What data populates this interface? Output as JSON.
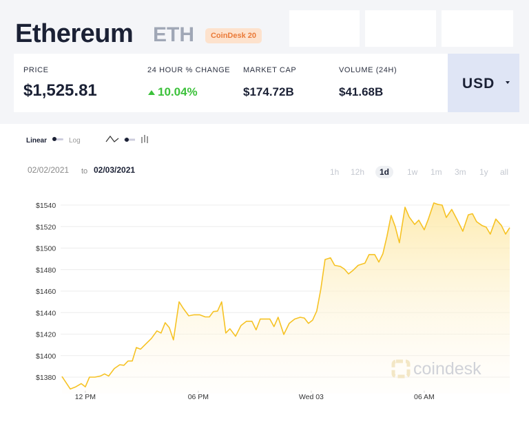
{
  "header": {
    "title": "Ethereum",
    "symbol": "ETH",
    "badge": "CoinDesk 20"
  },
  "stats": [
    {
      "label": "PRICE",
      "value": "$1,525.81"
    },
    {
      "label": "24 HOUR % CHANGE",
      "value": "10.04%"
    },
    {
      "label": "MARKET CAP",
      "value": "$174.72B"
    },
    {
      "label": "VOLUME (24H)",
      "value": "$41.68B"
    }
  ],
  "currency": "USD",
  "controls": {
    "scales": [
      "Linear",
      "Log"
    ],
    "date_from": "02/02/2021",
    "date_sep": "to",
    "date_to": "02/03/2021",
    "ranges": [
      "1h",
      "12h",
      "1d",
      "1w",
      "1m",
      "3m",
      "1y",
      "all"
    ],
    "active_range": "1d"
  },
  "watermark": "coindesk",
  "chart_data": {
    "type": "line",
    "color": "#f6c223",
    "x": [
      10.76,
      11.2,
      11.49,
      11.78,
      12.0,
      12.22,
      12.51,
      12.8,
      13.02,
      13.24,
      13.54,
      13.83,
      14.05,
      14.27,
      14.49,
      14.71,
      14.93,
      15.22,
      15.51,
      15.8,
      16.02,
      16.24,
      16.46,
      16.68,
      16.98,
      17.2,
      17.49,
      17.78,
      18.07,
      18.37,
      18.59,
      18.8,
      19.02,
      19.24,
      19.46,
      19.68,
      19.98,
      20.27,
      20.56,
      20.85,
      21.07,
      21.29,
      21.59,
      21.8,
      22.02,
      22.24,
      22.54,
      22.83,
      23.12,
      23.41,
      23.63,
      23.85,
      24.07,
      24.29,
      24.51,
      24.73,
      25.02,
      25.24,
      25.54,
      25.76,
      25.98,
      26.2,
      26.49,
      26.85,
      27.07,
      27.37,
      27.59,
      27.8,
      28.02,
      28.24,
      28.46,
      28.68,
      28.98,
      29.2,
      29.49,
      29.71,
      30.0,
      30.22,
      30.51,
      30.73,
      30.95,
      31.17,
      31.46,
      31.76,
      32.05,
      32.34,
      32.56,
      32.78,
      33.07,
      33.29,
      33.51,
      33.8,
      34.1,
      34.32,
      34.54
    ],
    "values": [
      1380.6,
      1369,
      1371,
      1374,
      1371,
      1380,
      1380,
      1381,
      1383,
      1381,
      1388,
      1391.5,
      1391,
      1395,
      1395,
      1407.5,
      1406,
      1411,
      1416,
      1423,
      1421,
      1430.6,
      1426,
      1414.6,
      1450,
      1444,
      1437,
      1438,
      1438,
      1436,
      1436,
      1441,
      1441.4,
      1450,
      1421,
      1425,
      1418,
      1428,
      1432,
      1432,
      1424,
      1434,
      1434,
      1434,
      1427,
      1435.7,
      1419.7,
      1430,
      1434,
      1435.7,
      1435,
      1430,
      1433,
      1441.4,
      1462,
      1489.4,
      1491,
      1484,
      1483,
      1480.5,
      1476,
      1479,
      1484,
      1486,
      1494,
      1494,
      1487,
      1494.6,
      1511,
      1530.4,
      1520,
      1505,
      1538,
      1529,
      1522,
      1526,
      1517,
      1527,
      1542,
      1540.6,
      1540,
      1528.5,
      1536,
      1526,
      1515.7,
      1531,
      1532,
      1524.6,
      1521,
      1519.5,
      1513,
      1527,
      1521,
      1513,
      1519
    ],
    "xlim": [
      10.76,
      34.54
    ],
    "ylim": [
      1368,
      1548
    ],
    "xticks": [
      {
        "value": 12,
        "label": "12 PM"
      },
      {
        "value": 18,
        "label": "06 PM"
      },
      {
        "value": 24,
        "label": "Wed 03"
      },
      {
        "value": 30,
        "label": "06 AM"
      }
    ],
    "yticks": [
      {
        "value": 1380,
        "label": "$1380"
      },
      {
        "value": 1400,
        "label": "$1400"
      },
      {
        "value": 1420,
        "label": "$1420"
      },
      {
        "value": 1440,
        "label": "$1440"
      },
      {
        "value": 1460,
        "label": "$1460"
      },
      {
        "value": 1480,
        "label": "$1480"
      },
      {
        "value": 1500,
        "label": "$1500"
      },
      {
        "value": 1520,
        "label": "$1520"
      },
      {
        "value": 1540,
        "label": "$1540"
      }
    ],
    "grid": true
  }
}
